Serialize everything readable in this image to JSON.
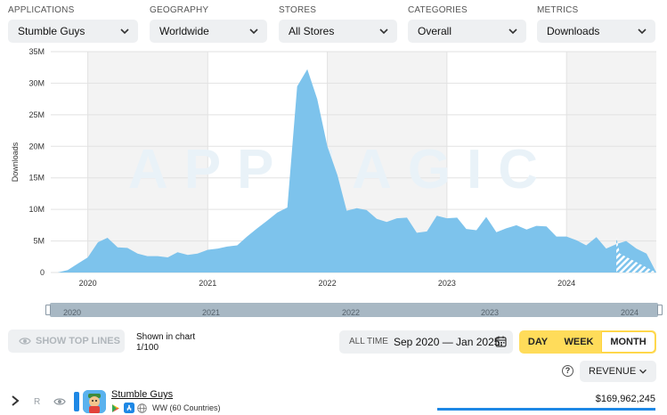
{
  "filters": [
    {
      "label": "APPLICATIONS",
      "value": "Stumble Guys"
    },
    {
      "label": "GEOGRAPHY",
      "value": "Worldwide"
    },
    {
      "label": "STORES",
      "value": "All Stores"
    },
    {
      "label": "CATEGORIES",
      "value": "Overall"
    },
    {
      "label": "METRICS",
      "value": "Downloads"
    }
  ],
  "watermark": "APPMAGIC",
  "chart_data": {
    "type": "area",
    "ylabel": "Downloads",
    "yticks": [
      "0",
      "5M",
      "10M",
      "15M",
      "20M",
      "25M",
      "30M",
      "35M"
    ],
    "ylim": [
      0,
      35000000
    ],
    "xlim": [
      "2019-09-10",
      "2024-10-01"
    ],
    "year_labels": [
      "2020",
      "2021",
      "2022",
      "2023",
      "2024"
    ],
    "grid": true,
    "color": "#7dc3ec",
    "x": [
      "2019-10-01",
      "2019-11-01",
      "2019-12-01",
      "2020-01-01",
      "2020-02-01",
      "2020-03-01",
      "2020-04-01",
      "2020-05-01",
      "2020-06-01",
      "2020-07-01",
      "2020-08-01",
      "2020-09-01",
      "2020-10-01",
      "2020-11-01",
      "2020-12-01",
      "2021-01-01",
      "2021-02-01",
      "2021-03-01",
      "2021-04-01",
      "2021-05-01",
      "2021-06-01",
      "2021-07-01",
      "2021-08-01",
      "2021-09-01",
      "2021-10-01",
      "2021-11-01",
      "2021-12-01",
      "2022-01-01",
      "2022-02-01",
      "2022-03-01",
      "2022-04-01",
      "2022-05-01",
      "2022-06-01",
      "2022-07-01",
      "2022-08-01",
      "2022-09-01",
      "2022-10-01",
      "2022-11-01",
      "2022-12-01",
      "2023-01-01",
      "2023-02-01",
      "2023-03-01",
      "2023-04-01",
      "2023-05-01",
      "2023-06-01",
      "2023-07-01",
      "2023-08-01",
      "2023-09-01",
      "2023-10-01",
      "2023-11-01",
      "2023-12-01",
      "2024-01-01",
      "2024-02-01",
      "2024-03-01",
      "2024-04-01",
      "2024-05-01",
      "2024-06-01",
      "2024-07-01",
      "2024-08-01",
      "2024-09-01",
      "2024-10-01"
    ],
    "values": [
      0,
      400000,
      1400000,
      2400000,
      4800000,
      5500000,
      4000000,
      3900000,
      3000000,
      2600000,
      2600000,
      2400000,
      3200000,
      2800000,
      3000000,
      3600000,
      3800000,
      4100000,
      4300000,
      5700000,
      7000000,
      8200000,
      9500000,
      10300000,
      29500000,
      32200000,
      27500000,
      20000000,
      15400000,
      9800000,
      10200000,
      9900000,
      8500000,
      8000000,
      8600000,
      8700000,
      6300000,
      6500000,
      9000000,
      8600000,
      8700000,
      6900000,
      6700000,
      8800000,
      6400000,
      7000000,
      7500000,
      6800000,
      7400000,
      7300000,
      5700000,
      5700000,
      5100000,
      4300000,
      5600000,
      3800000,
      4500000,
      5000000,
      3800000,
      3000000,
      0
    ],
    "projected_tail": [
      {
        "x": "2024-06-01",
        "y": 5600000
      },
      {
        "x": "2024-07-01",
        "y": 3000000
      }
    ]
  },
  "range": {
    "years": [
      "2020",
      "2021",
      "2022",
      "2023",
      "2024"
    ]
  },
  "controls": {
    "show_top_lines": "SHOW TOP LINES",
    "shown_in_chart_label": "Shown in chart",
    "shown_in_chart_count": "1/100",
    "all_time": "ALL TIME",
    "date_range": "Sep 2020 — Jan 2025",
    "periods": [
      "DAY",
      "WEEK",
      "MONTH"
    ],
    "active_period": "MONTH",
    "revenue_label": "REVENUE",
    "help": "?"
  },
  "app": {
    "rank": "R",
    "name": "Stumble Guys",
    "region": "WW (60 Countries)",
    "amount": "$169,962,245",
    "color": "#1e88e5"
  }
}
